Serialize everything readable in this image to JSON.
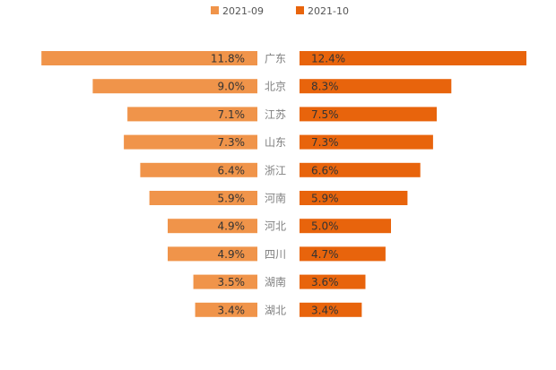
{
  "chart_data": {
    "type": "bar",
    "orientation": "horizontal-butterfly",
    "categories": [
      "广东",
      "北京",
      "江苏",
      "山东",
      "浙江",
      "河南",
      "河北",
      "四川",
      "湖南",
      "湖北"
    ],
    "series": [
      {
        "name": "2021-09",
        "color": "#f0944a",
        "values": [
          11.8,
          9.0,
          7.1,
          7.3,
          6.4,
          5.9,
          4.9,
          4.9,
          3.5,
          3.4
        ],
        "labels": [
          "11.8%",
          "9.0%",
          "7.1%",
          "7.3%",
          "6.4%",
          "5.9%",
          "4.9%",
          "4.9%",
          "3.5%",
          "3.4%"
        ]
      },
      {
        "name": "2021-10",
        "color": "#e8640c",
        "values": [
          12.4,
          8.3,
          7.5,
          7.3,
          6.6,
          5.9,
          5.0,
          4.7,
          3.6,
          3.4
        ],
        "labels": [
          "12.4%",
          "8.3%",
          "7.5%",
          "7.3%",
          "6.6%",
          "5.9%",
          "5.0%",
          "4.7%",
          "3.6%",
          "3.4%"
        ]
      }
    ],
    "title": "",
    "xlabel": "",
    "ylabel": "",
    "legend": "top-center",
    "grid": false
  }
}
